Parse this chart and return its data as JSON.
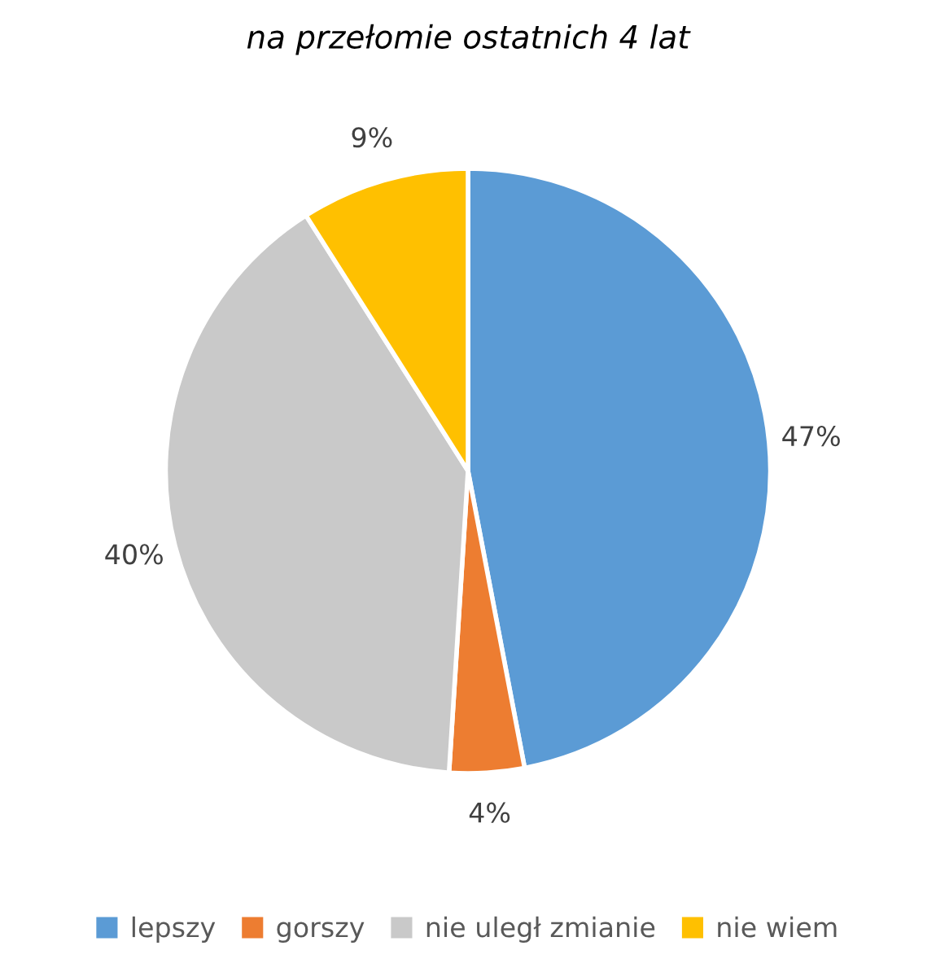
{
  "chart_data": {
    "type": "pie",
    "title": "na przełomie ostatnich 4 lat",
    "categories": [
      "lepszy",
      "gorszy",
      "nie uległ zmianie",
      "nie wiem"
    ],
    "values": [
      47,
      4,
      40,
      9
    ],
    "colors": [
      "#5b9bd5",
      "#ed7d31",
      "#c9c9c9",
      "#ffc000"
    ],
    "value_labels": [
      "47%",
      "4%",
      "40%",
      "9%"
    ],
    "legend": "bottom"
  }
}
